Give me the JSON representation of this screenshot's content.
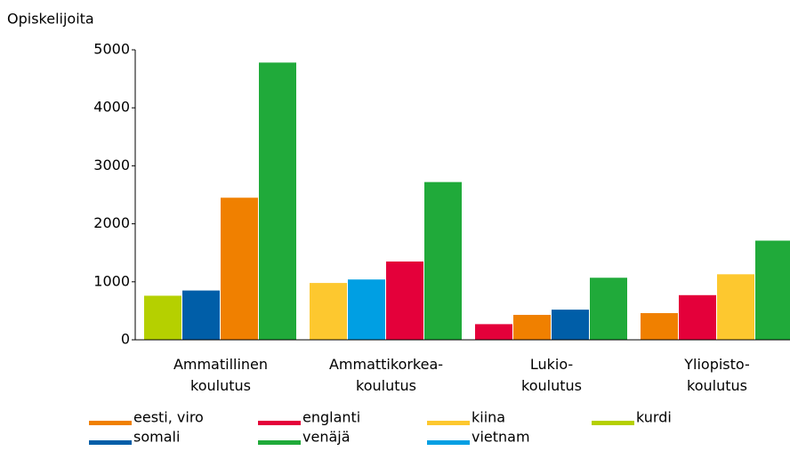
{
  "chart_data": {
    "type": "bar",
    "y_label": "Opiskelijoita",
    "categories": [
      "Ammatillinen\nkoulutus",
      "Ammattikorkea-\nkoulutus",
      "Lukio-\nkoulutus",
      "Yliopisto-\nkoulutus"
    ],
    "series": [
      {
        "name": "eesti, viro",
        "color": "#f08000",
        "values": [
          2450,
          null,
          430,
          460
        ]
      },
      {
        "name": "englanti",
        "color": "#e4003a",
        "values": [
          null,
          1350,
          270,
          770
        ]
      },
      {
        "name": "kiina",
        "color": "#fdc82f",
        "values": [
          null,
          980,
          null,
          1130
        ]
      },
      {
        "name": "kurdi",
        "color": "#b5d000",
        "values": [
          760,
          null,
          null,
          null
        ]
      },
      {
        "name": "somali",
        "color": "#005ea8",
        "values": [
          850,
          null,
          520,
          null
        ]
      },
      {
        "name": "venäjä",
        "color": "#20aa3a",
        "values": [
          4780,
          2720,
          1070,
          1710
        ]
      },
      {
        "name": "vietnam",
        "color": "#009fe3",
        "values": [
          null,
          1040,
          null,
          null
        ]
      }
    ],
    "ylim": [
      0,
      5000
    ],
    "yticks": [
      0,
      1000,
      2000,
      3000,
      4000,
      5000
    ],
    "grid": false
  }
}
